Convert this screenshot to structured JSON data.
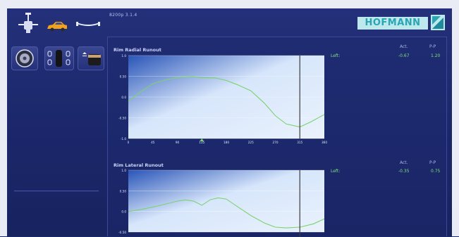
{
  "header": {
    "version": "8200p  3.1.4",
    "brand": "HOFMANN"
  },
  "sidebar": {
    "top_icons": [
      "wheel-balancer-icon",
      "car-icon",
      "axle-icon"
    ],
    "tiles": [
      "wheel-icon",
      "tire-matching-icon",
      "tire-profile-icon"
    ]
  },
  "charts": [
    {
      "title": "Rim Radial Runout",
      "side_label": "Left:",
      "act_header": "Act.",
      "pp_header": "P-P",
      "act_value": "-0.67",
      "pp_value": "1.20",
      "y_ticks": [
        "1.0",
        "0.50",
        "0.0",
        "-0.50",
        "-1.0"
      ],
      "x_ticks": [
        "0",
        "45",
        "90",
        "135",
        "180",
        "225",
        "270",
        "315",
        "360"
      ],
      "marker_degree": 315
    },
    {
      "title": "Rim Lateral Runout",
      "side_label": "Left:",
      "act_header": "Act.",
      "pp_header": "P-P",
      "act_value": "-0.35",
      "pp_value": "0.75",
      "y_ticks": [
        "1.0",
        "0.50",
        "0.0",
        "-0.50"
      ],
      "marker_degree": 315
    }
  ],
  "chart_data": [
    {
      "type": "line",
      "title": "Rim Radial Runout",
      "x": [
        0,
        20,
        45,
        70,
        90,
        115,
        135,
        160,
        180,
        200,
        225,
        250,
        270,
        290,
        315,
        335,
        360
      ],
      "series": [
        {
          "values": [
            -0.1,
            0.1,
            0.32,
            0.42,
            0.47,
            0.49,
            0.47,
            0.46,
            0.4,
            0.3,
            0.15,
            -0.15,
            -0.45,
            -0.65,
            -0.72,
            -0.6,
            -0.42
          ]
        }
      ],
      "xlim": [
        0,
        360
      ],
      "ylim": [
        -1,
        1
      ],
      "accent_color": "#7ad36e",
      "highlight_x": 135
    },
    {
      "type": "line",
      "title": "Rim Lateral Runout",
      "x": [
        0,
        25,
        50,
        75,
        90,
        105,
        120,
        135,
        150,
        165,
        180,
        200,
        225,
        250,
        270,
        290,
        315,
        340,
        360
      ],
      "series": [
        {
          "values": [
            0.0,
            0.05,
            0.12,
            0.2,
            0.25,
            0.28,
            0.25,
            0.15,
            0.28,
            0.33,
            0.3,
            0.12,
            -0.1,
            -0.28,
            -0.38,
            -0.4,
            -0.38,
            -0.3,
            -0.18
          ]
        }
      ],
      "xlim": [
        0,
        360
      ],
      "ylim": [
        -0.5,
        1
      ],
      "accent_color": "#7ad36e"
    }
  ]
}
